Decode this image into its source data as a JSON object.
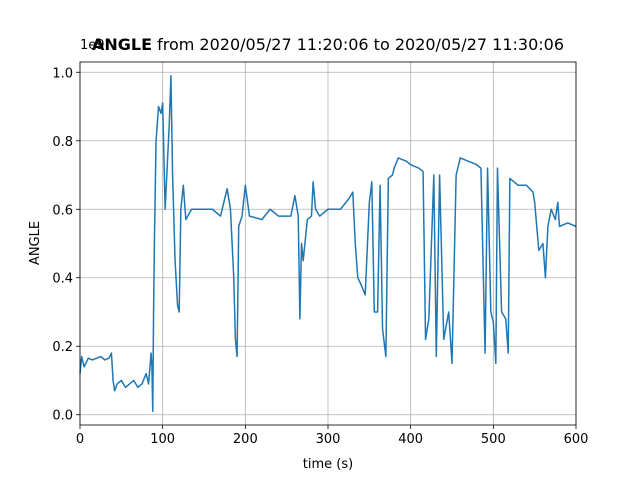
{
  "chart_data": {
    "type": "line",
    "title_bold": "ANGLE",
    "title": "from 2020/05/27 11:20:06 to 2020/05/27 11:30:06",
    "offset_text": "1e9",
    "xlabel": "time (s)",
    "ylabel": "ANGLE",
    "xlim": [
      0,
      600
    ],
    "ylim": [
      -0.03,
      1.03
    ],
    "xticks": [
      0,
      100,
      200,
      300,
      400,
      500,
      600
    ],
    "yticks": [
      {
        "value": 0,
        "label": "0.0"
      },
      0.2,
      0.4,
      0.6,
      0.8,
      {
        "value": 1,
        "label": "1.0"
      }
    ],
    "grid": true,
    "series": [
      {
        "name": "ANGLE",
        "color": "#1f77b4",
        "x": [
          0,
          2,
          5,
          10,
          15,
          20,
          25,
          30,
          35,
          38,
          40,
          42,
          45,
          50,
          55,
          60,
          65,
          70,
          75,
          80,
          83,
          85,
          86,
          87,
          88,
          89,
          90,
          92,
          95,
          98,
          100,
          103,
          106,
          108,
          110,
          112,
          115,
          118,
          120,
          122,
          125,
          128,
          135,
          150,
          160,
          170,
          178,
          182,
          186,
          188,
          190,
          192,
          196,
          200,
          205,
          220,
          230,
          240,
          255,
          260,
          264,
          266,
          268,
          270,
          275,
          280,
          282,
          285,
          290,
          300,
          315,
          325,
          330,
          333,
          336,
          340,
          345,
          350,
          353,
          356,
          360,
          363,
          366,
          370,
          373,
          378,
          380,
          385,
          395,
          400,
          410,
          415,
          418,
          422,
          428,
          431,
          435,
          440,
          446,
          450,
          455,
          460,
          470,
          480,
          485,
          490,
          493,
          497,
          500,
          503,
          505,
          510,
          515,
          518,
          520,
          530,
          540,
          548,
          550,
          555,
          560,
          563,
          566,
          570,
          575,
          578,
          580,
          590,
          600
        ],
        "values": [
          0.12,
          0.17,
          0.14,
          0.165,
          0.16,
          0.165,
          0.17,
          0.16,
          0.165,
          0.18,
          0.1,
          0.07,
          0.09,
          0.1,
          0.08,
          0.09,
          0.1,
          0.08,
          0.09,
          0.12,
          0.09,
          0.15,
          0.18,
          0.14,
          0.01,
          0.3,
          0.5,
          0.8,
          0.9,
          0.88,
          0.91,
          0.6,
          0.75,
          0.85,
          0.99,
          0.7,
          0.45,
          0.32,
          0.3,
          0.6,
          0.67,
          0.57,
          0.6,
          0.6,
          0.6,
          0.58,
          0.66,
          0.6,
          0.4,
          0.22,
          0.17,
          0.55,
          0.58,
          0.67,
          0.58,
          0.57,
          0.6,
          0.58,
          0.58,
          0.64,
          0.58,
          0.28,
          0.5,
          0.45,
          0.57,
          0.58,
          0.68,
          0.6,
          0.58,
          0.6,
          0.6,
          0.63,
          0.65,
          0.5,
          0.4,
          0.38,
          0.35,
          0.62,
          0.68,
          0.3,
          0.3,
          0.67,
          0.25,
          0.17,
          0.69,
          0.7,
          0.72,
          0.75,
          0.74,
          0.73,
          0.72,
          0.71,
          0.22,
          0.28,
          0.7,
          0.17,
          0.7,
          0.22,
          0.3,
          0.15,
          0.7,
          0.75,
          0.74,
          0.73,
          0.72,
          0.18,
          0.72,
          0.3,
          0.27,
          0.15,
          0.72,
          0.3,
          0.28,
          0.18,
          0.69,
          0.67,
          0.67,
          0.65,
          0.62,
          0.48,
          0.5,
          0.4,
          0.55,
          0.6,
          0.57,
          0.62,
          0.55,
          0.56,
          0.55
        ]
      }
    ]
  }
}
